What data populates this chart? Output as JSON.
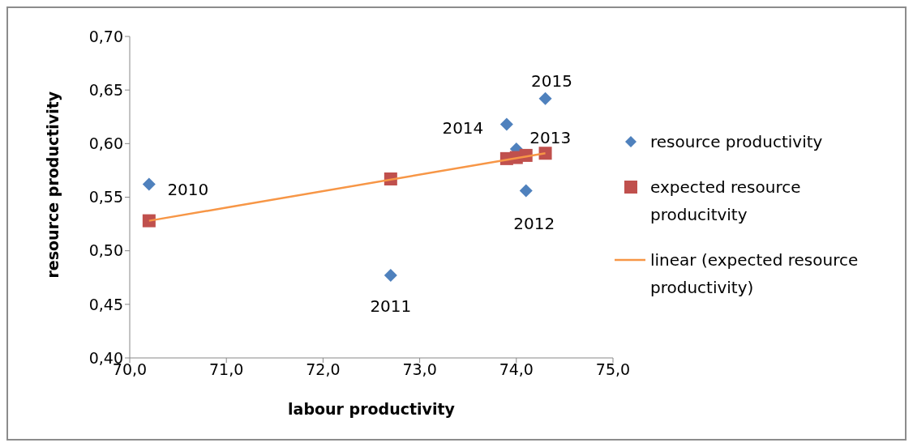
{
  "chart_data": {
    "type": "scatter",
    "xlabel": "labour productivity",
    "ylabel": "resource productivity",
    "xlim": [
      70,
      75
    ],
    "xticks": [
      {
        "value": 70,
        "label": "70,0"
      },
      {
        "value": 71,
        "label": "71,0"
      },
      {
        "value": 72,
        "label": "72,0"
      },
      {
        "value": 73,
        "label": "73,0"
      },
      {
        "value": 74,
        "label": "74,0"
      },
      {
        "value": 75,
        "label": "75,0"
      }
    ],
    "ylim": [
      0.4,
      0.7
    ],
    "yticks": [
      {
        "value": 0.4,
        "label": "0,40"
      },
      {
        "value": 0.45,
        "label": "0,45"
      },
      {
        "value": 0.5,
        "label": "0,50"
      },
      {
        "value": 0.55,
        "label": "0,55"
      },
      {
        "value": 0.6,
        "label": "0,60"
      },
      {
        "value": 0.65,
        "label": "0,65"
      },
      {
        "value": 0.7,
        "label": "0,70"
      }
    ],
    "grid": false,
    "legend": "right",
    "series": [
      {
        "name": "resource productivity",
        "marker": "diamond",
        "color": "#4f81bd",
        "x": [
          70.2,
          72.7,
          74.1,
          74.0,
          73.9,
          74.3
        ],
        "values": [
          0.562,
          0.477,
          0.556,
          0.595,
          0.618,
          0.642
        ]
      },
      {
        "name": "expected resource producitvity",
        "marker": "square",
        "color": "#c0504d",
        "x": [
          70.2,
          72.7,
          73.9,
          74.0,
          74.1,
          74.3
        ],
        "values": [
          0.528,
          0.567,
          0.586,
          0.587,
          0.589,
          0.591
        ]
      },
      {
        "name": "linear (expected resource productivity)",
        "type": "line",
        "marker": "none",
        "color": "#f79646",
        "x": [
          70.2,
          74.3
        ],
        "values": [
          0.528,
          0.591
        ]
      }
    ],
    "annotations": [
      {
        "text": "2010",
        "x": 70.2,
        "y": 0.562
      },
      {
        "text": "2011",
        "x": 72.7,
        "y": 0.477
      },
      {
        "text": "2012",
        "x": 74.1,
        "y": 0.556
      },
      {
        "text": "2013",
        "x": 74.0,
        "y": 0.595
      },
      {
        "text": "2014",
        "x": 73.9,
        "y": 0.618
      },
      {
        "text": "2015",
        "x": 74.3,
        "y": 0.642
      }
    ]
  }
}
